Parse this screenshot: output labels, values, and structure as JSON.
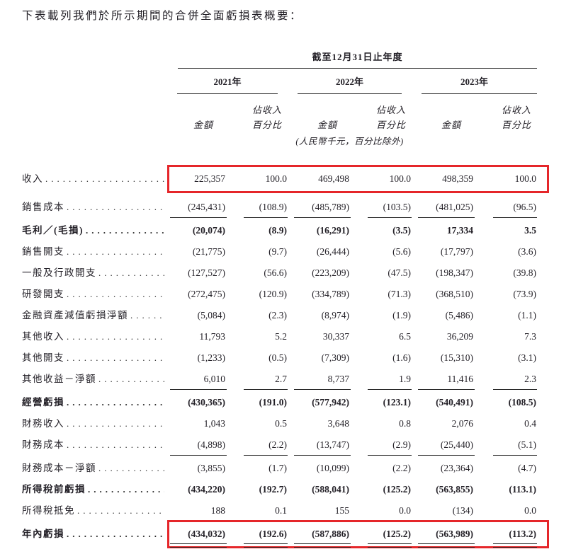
{
  "title": "下表載列我們於所示期間的合併全面虧損表概要：",
  "colors": {
    "highlight_border": "#e5262a",
    "text": "#221f26"
  },
  "table": {
    "period_header": "截至12月31日止年度",
    "years": [
      "2021年",
      "2022年",
      "2023年"
    ],
    "col_labels": {
      "amount": "金額",
      "pct_line1": "佔收入",
      "pct_line2": "百分比"
    },
    "unit_note": "(人民幣千元，百分比除外)",
    "rows": [
      {
        "label": "收入",
        "values": [
          "225,357",
          "100.0",
          "469,498",
          "100.0",
          "498,359",
          "100.0"
        ],
        "style": "normal",
        "highlight": true
      },
      {
        "label": "銷售成本",
        "values": [
          "(245,431)",
          "(108.9)",
          "(485,789)",
          "(103.5)",
          "(481,025)",
          "(96.5)"
        ],
        "style": "underline"
      },
      {
        "label": "毛利／(毛損)",
        "values": [
          "(20,074)",
          "(8.9)",
          "(16,291)",
          "(3.5)",
          "17,334",
          "3.5"
        ],
        "style": "bold"
      },
      {
        "label": "銷售開支",
        "values": [
          "(21,775)",
          "(9.7)",
          "(26,444)",
          "(5.6)",
          "(17,797)",
          "(3.6)"
        ],
        "style": "normal"
      },
      {
        "label": "一般及行政開支",
        "values": [
          "(127,527)",
          "(56.6)",
          "(223,209)",
          "(47.5)",
          "(198,347)",
          "(39.8)"
        ],
        "style": "normal"
      },
      {
        "label": "研發開支",
        "values": [
          "(272,475)",
          "(120.9)",
          "(334,789)",
          "(71.3)",
          "(368,510)",
          "(73.9)"
        ],
        "style": "normal"
      },
      {
        "label": "金融資產減值虧損淨額",
        "values": [
          "(5,084)",
          "(2.3)",
          "(8,974)",
          "(1.9)",
          "(5,486)",
          "(1.1)"
        ],
        "style": "normal"
      },
      {
        "label": "其他收入",
        "values": [
          "11,793",
          "5.2",
          "30,337",
          "6.5",
          "36,209",
          "7.3"
        ],
        "style": "normal"
      },
      {
        "label": "其他開支",
        "values": [
          "(1,233)",
          "(0.5)",
          "(7,309)",
          "(1.6)",
          "(15,310)",
          "(3.1)"
        ],
        "style": "normal"
      },
      {
        "label": "其他收益－淨額",
        "values": [
          "6,010",
          "2.7",
          "8,737",
          "1.9",
          "11,416",
          "2.3"
        ],
        "style": "underline"
      },
      {
        "label": "經營虧損",
        "values": [
          "(430,365)",
          "(191.0)",
          "(577,942)",
          "(123.1)",
          "(540,491)",
          "(108.5)"
        ],
        "style": "bold"
      },
      {
        "label": "財務收入",
        "values": [
          "1,043",
          "0.5",
          "3,648",
          "0.8",
          "2,076",
          "0.4"
        ],
        "style": "normal"
      },
      {
        "label": "財務成本",
        "values": [
          "(4,898)",
          "(2.2)",
          "(13,747)",
          "(2.9)",
          "(25,440)",
          "(5.1)"
        ],
        "style": "underline"
      },
      {
        "label": "財務成本－淨額",
        "values": [
          "(3,855)",
          "(1.7)",
          "(10,099)",
          "(2.2)",
          "(23,364)",
          "(4.7)"
        ],
        "style": "normal"
      },
      {
        "label": "所得稅前虧損",
        "values": [
          "(434,220)",
          "(192.7)",
          "(588,041)",
          "(125.2)",
          "(563,855)",
          "(113.1)"
        ],
        "style": "bold"
      },
      {
        "label": "所得稅抵免",
        "values": [
          "188",
          "0.1",
          "155",
          "0.0",
          "(134)",
          "0.0"
        ],
        "style": "underline"
      },
      {
        "label": "年內虧損",
        "values": [
          "(434,032)",
          "(192.6)",
          "(587,886)",
          "(125.2)",
          "(563,989)",
          "(113.2)"
        ],
        "style": "bold-double",
        "highlight": true
      }
    ]
  }
}
